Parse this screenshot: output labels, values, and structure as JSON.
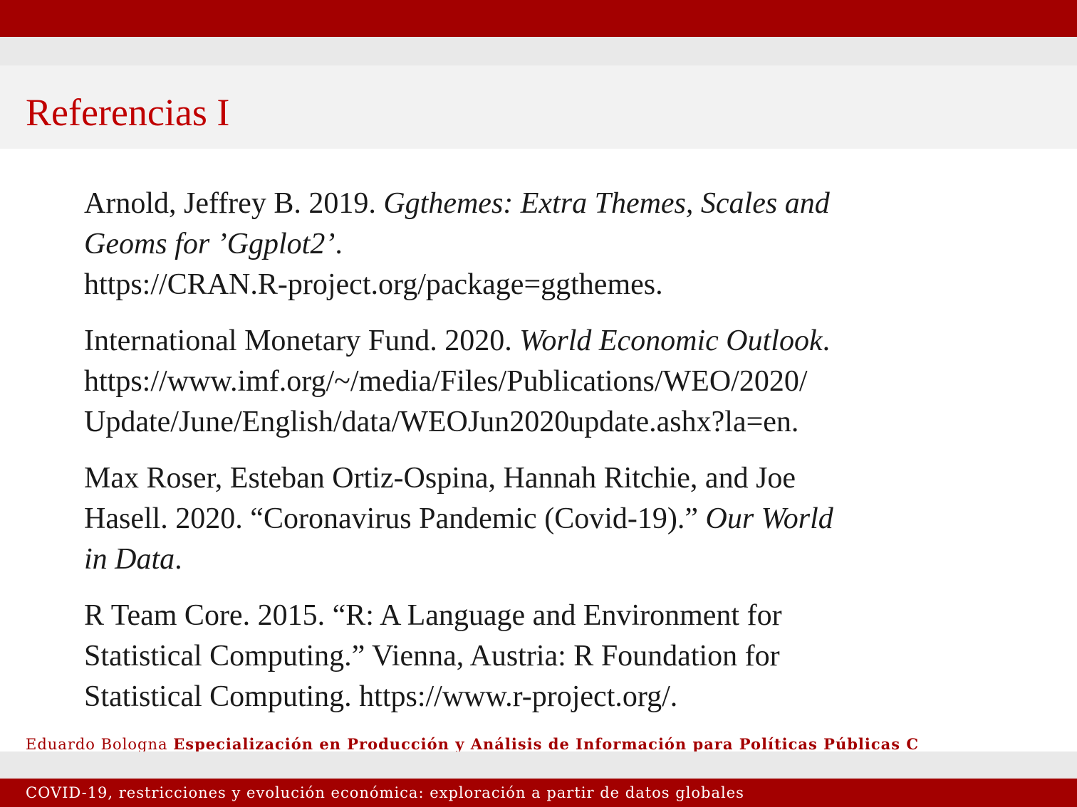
{
  "slide": {
    "title": "Referencias I"
  },
  "references": [
    {
      "lines": [
        [
          {
            "text": "Arnold, Jeffrey B. 2019. ",
            "italic": false
          },
          {
            "text": "Ggthemes: Extra Themes, Scales and",
            "italic": true
          }
        ],
        [
          {
            "text": "Geoms for ’Ggplot2’",
            "italic": true
          },
          {
            "text": ".",
            "italic": false
          }
        ],
        [
          {
            "text": "https://CRAN.R-project.org/package=ggthemes.",
            "italic": false
          }
        ]
      ]
    },
    {
      "lines": [
        [
          {
            "text": "International Monetary Fund. 2020. ",
            "italic": false
          },
          {
            "text": "World Economic Outlook",
            "italic": true
          },
          {
            "text": ".",
            "italic": false
          }
        ],
        [
          {
            "text": "https://www.imf.org/~/media/Files/Publications/WEO/2020/",
            "italic": false
          }
        ],
        [
          {
            "text": "Update/June/English/data/WEOJun2020update.ashx?la=en.",
            "italic": false
          }
        ]
      ]
    },
    {
      "lines": [
        [
          {
            "text": "Max Roser, Esteban Ortiz-Ospina, Hannah Ritchie, and Joe",
            "italic": false
          }
        ],
        [
          {
            "text": "Hasell. 2020. “Coronavirus Pandemic (Covid-19).” ",
            "italic": false
          },
          {
            "text": "Our World",
            "italic": true
          }
        ],
        [
          {
            "text": "in Data",
            "italic": true
          },
          {
            "text": ".",
            "italic": false
          }
        ]
      ]
    },
    {
      "lines": [
        [
          {
            "text": "R Team Core. 2015. “R: A Language and Environment for",
            "italic": false
          }
        ],
        [
          {
            "text": "Statistical Computing.” Vienna, Austria: R Foundation for",
            "italic": false
          }
        ],
        [
          {
            "text": "Statistical Computing. https://www.r-project.org/.",
            "italic": false
          }
        ]
      ]
    }
  ],
  "footer": {
    "author": "Eduardo Bologna",
    "program": "Especialización en Producción y Análisis de Información para Políticas Públicas C",
    "subtitle": "COVID-19, restricciones y evolución económica: exploración a partir de datos globales"
  },
  "colors": {
    "accent": "#a30000",
    "title": "#c00000",
    "band": "#e9e9e9",
    "title_band": "#f2f2f2"
  }
}
